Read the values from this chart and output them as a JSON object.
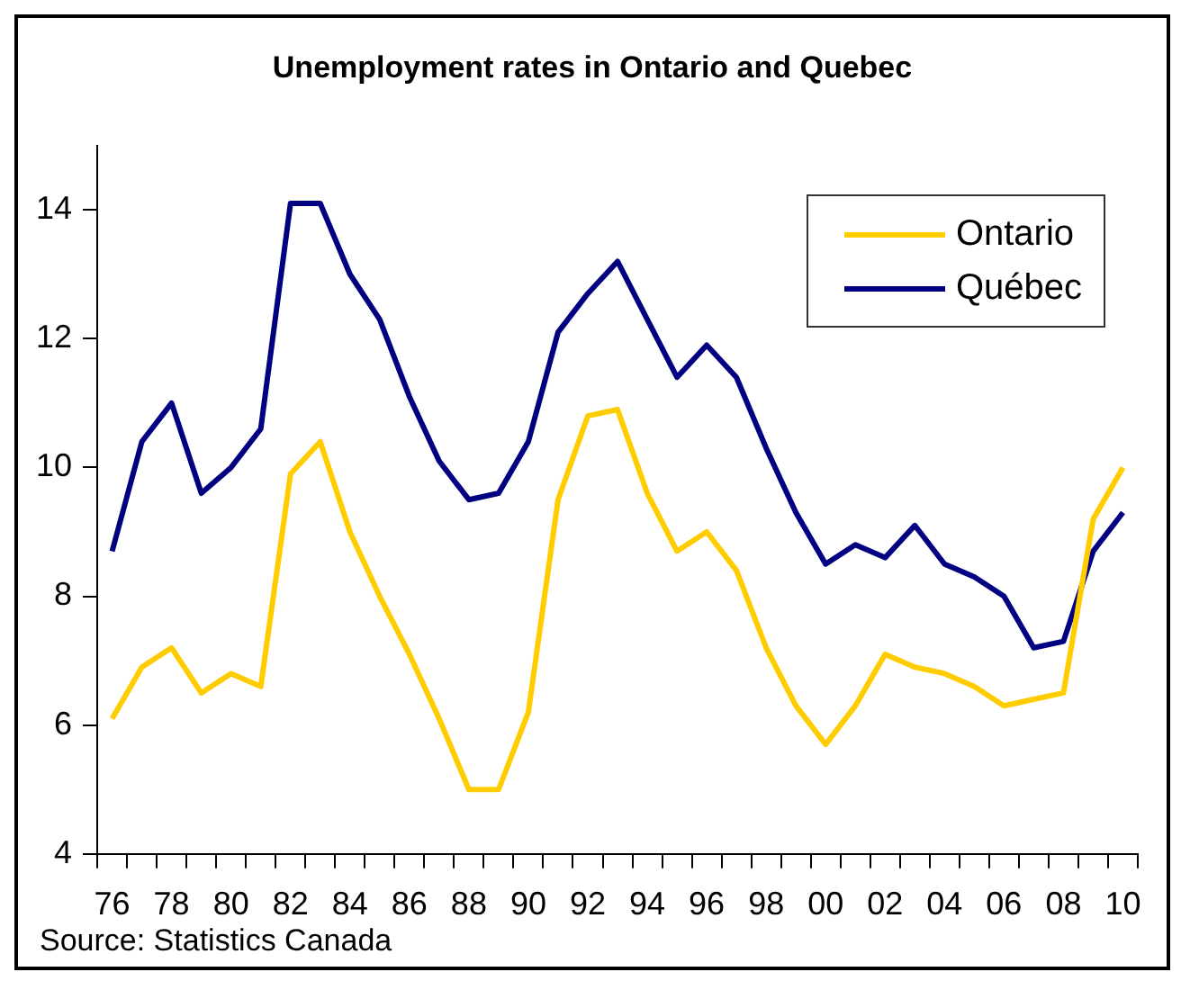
{
  "chart_data": {
    "type": "line",
    "title": "Unemployment rates in Ontario and Quebec",
    "categories": [
      "76",
      null,
      "78",
      null,
      "80",
      null,
      "82",
      null,
      "84",
      null,
      "86",
      null,
      "88",
      null,
      "90",
      null,
      "92",
      null,
      "94",
      null,
      "96",
      null,
      "98",
      null,
      "00",
      null,
      "02",
      null,
      "04",
      null,
      "06",
      null,
      "08",
      null,
      "10"
    ],
    "series": [
      {
        "name": "Ontario",
        "color": "#ffcc00",
        "values": [
          6.1,
          6.9,
          7.2,
          6.5,
          6.8,
          6.6,
          9.9,
          10.4,
          9.0,
          8.0,
          7.1,
          6.1,
          5.0,
          5.0,
          6.2,
          9.5,
          10.8,
          10.9,
          9.6,
          8.7,
          9.0,
          8.4,
          7.2,
          6.3,
          5.7,
          6.3,
          7.1,
          6.9,
          6.8,
          6.6,
          6.3,
          6.4,
          6.5,
          9.2,
          10.0
        ]
      },
      {
        "name": "Québec",
        "color": "#000080",
        "values": [
          8.7,
          10.4,
          11.0,
          9.6,
          10.0,
          10.6,
          14.1,
          14.1,
          13.0,
          12.3,
          11.1,
          10.1,
          9.5,
          9.6,
          10.4,
          12.1,
          12.7,
          13.2,
          12.3,
          11.4,
          11.9,
          11.4,
          10.3,
          9.3,
          8.5,
          8.8,
          8.6,
          9.1,
          8.5,
          8.3,
          8.0,
          7.2,
          7.3,
          8.7,
          9.3
        ]
      }
    ],
    "ylim": [
      4,
      15
    ],
    "yticks": [
      4,
      6,
      8,
      10,
      12,
      14
    ],
    "grid": false,
    "legend": "top right",
    "marker": "none",
    "line_style": "solid",
    "annotations": [
      "Source: Statistics Canada"
    ]
  }
}
